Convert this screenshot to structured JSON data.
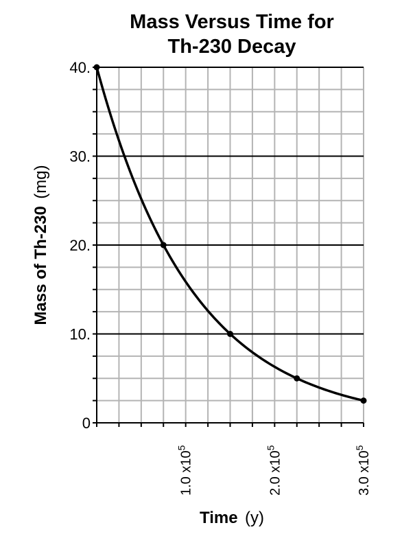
{
  "chart_data": {
    "type": "line",
    "title_lines": [
      "Mass Versus Time for",
      "Th-230 Decay"
    ],
    "xlabel": "Time",
    "xlabel_unit": "(y)",
    "ylabel": "Mass of Th-230",
    "ylabel_unit": "(mg)",
    "xlim": [
      0,
      300000
    ],
    "ylim": [
      0,
      40
    ],
    "y_tick_labels": [
      "0",
      "10.",
      "20.",
      "30.",
      "40."
    ],
    "x_tick_labels": [
      {
        "base": "1.0 x10",
        "exp": "5"
      },
      {
        "base": "2.0 x10",
        "exp": "5"
      },
      {
        "base": "3.0 x10",
        "exp": "5"
      }
    ],
    "grid": true,
    "series": [
      {
        "x": [
          0,
          75000,
          150000,
          225000,
          300000
        ],
        "y": [
          40,
          20,
          10,
          5,
          2.5
        ]
      }
    ]
  }
}
